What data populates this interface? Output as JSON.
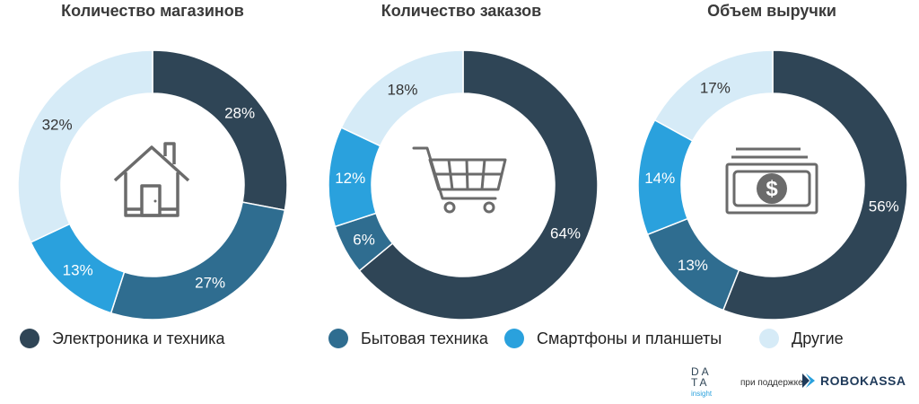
{
  "chart_data": [
    {
      "type": "pie",
      "title": "Количество магазинов",
      "slices": [
        {
          "label": "Электроника и техника",
          "value": 28,
          "text": "28%"
        },
        {
          "label": "Бытовая техника",
          "value": 27,
          "text": "27%"
        },
        {
          "label": "Смартфоны и планшеты",
          "value": 13,
          "text": "13%"
        },
        {
          "label": "Другие",
          "value": 32,
          "text": "32%"
        }
      ],
      "icon": "house-icon"
    },
    {
      "type": "pie",
      "title": "Количество заказов",
      "slices": [
        {
          "label": "Электроника и техника",
          "value": 64,
          "text": "64%"
        },
        {
          "label": "Бытовая техника",
          "value": 6,
          "text": "6%"
        },
        {
          "label": "Смартфоны и планшеты",
          "value": 12,
          "text": "12%"
        },
        {
          "label": "Другие",
          "value": 18,
          "text": "18%"
        }
      ],
      "icon": "shopping-cart-icon"
    },
    {
      "type": "pie",
      "title": "Объем выручки",
      "slices": [
        {
          "label": "Электроника и техника",
          "value": 56,
          "text": "56%"
        },
        {
          "label": "Бытовая техника",
          "value": 13,
          "text": "13%"
        },
        {
          "label": "Смартфоны и планшеты",
          "value": 14,
          "text": "14%"
        },
        {
          "label": "Другие",
          "value": 17,
          "text": "17%"
        }
      ],
      "icon": "money-icon"
    }
  ],
  "legend": [
    {
      "label": "Электроника и техника",
      "color": "#2f4556"
    },
    {
      "label": "Бытовая техника",
      "color": "#2f6d90"
    },
    {
      "label": "Смартфоны и планшеты",
      "color": "#2aa1dd"
    },
    {
      "label": "Другие",
      "color": "#d6ebf7"
    }
  ],
  "footer": {
    "logo_line1": "DA",
    "logo_line2": "TA",
    "logo_sub": "insight",
    "support_text": "при поддержке",
    "partner_name": "ROBOKASSA"
  }
}
